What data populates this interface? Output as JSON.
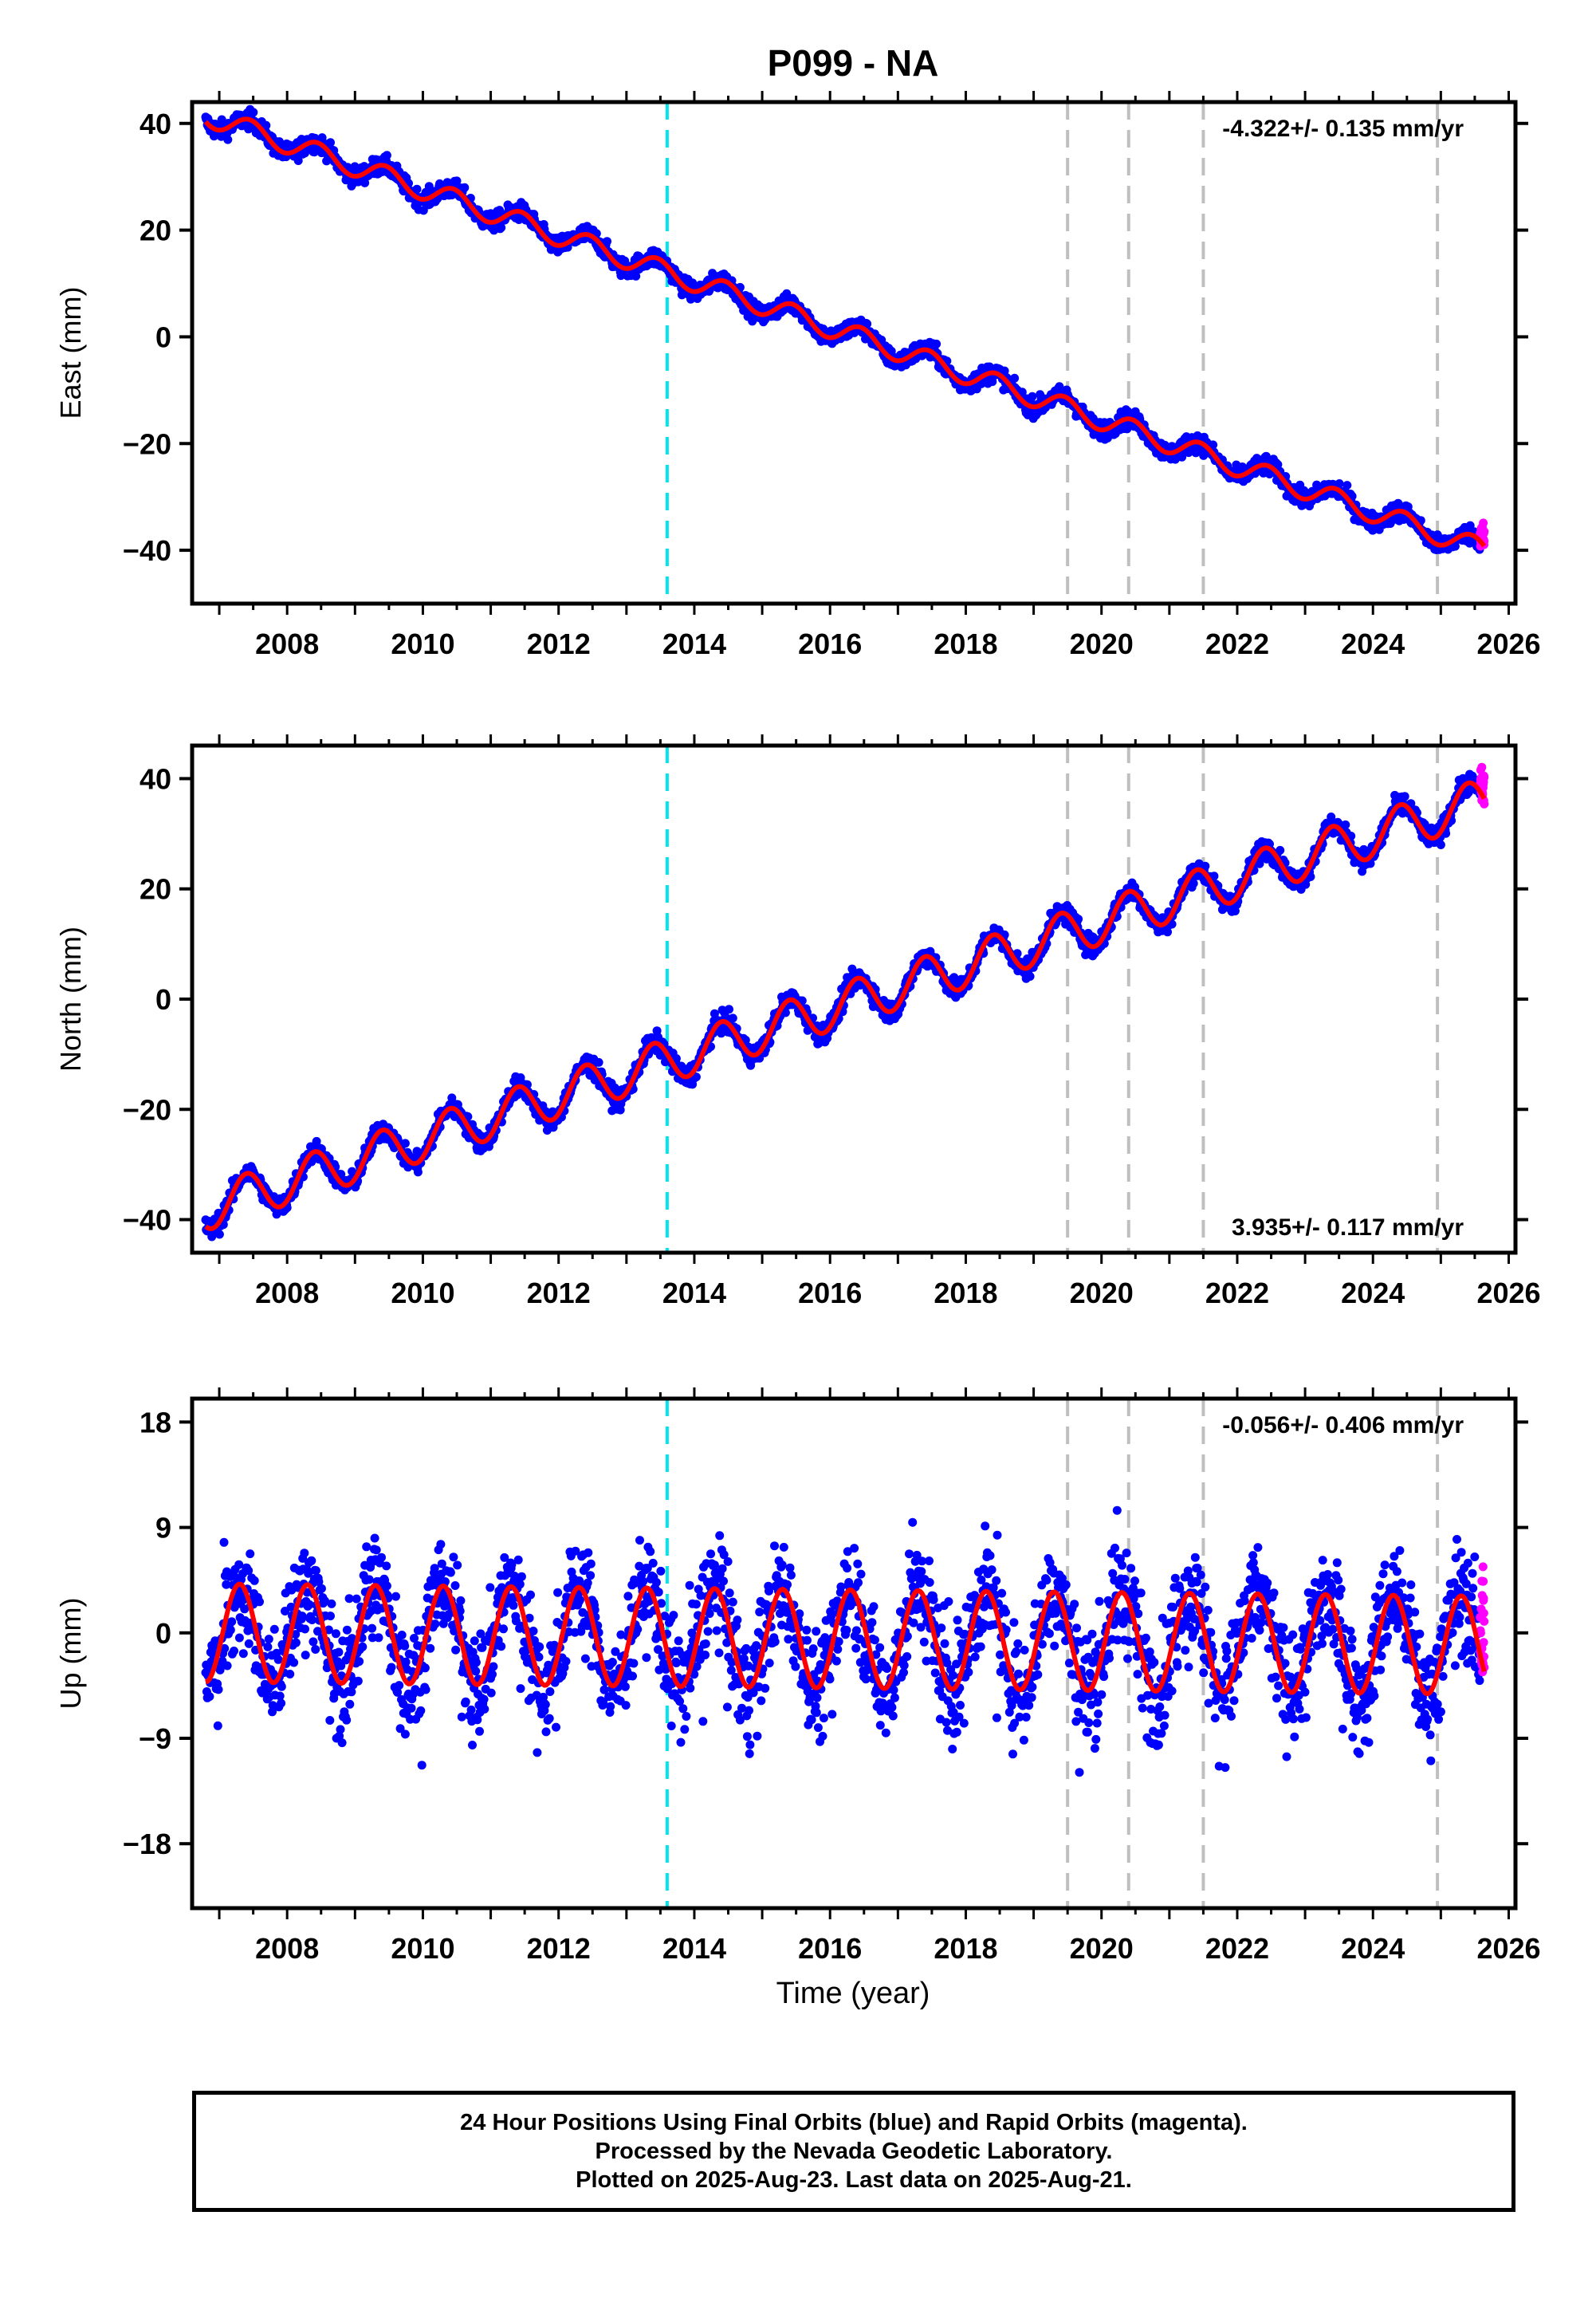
{
  "figure": {
    "title": "P099 - NA",
    "x_axis_title": "Time (year)",
    "caption": [
      "24 Hour Positions Using Final Orbits (blue) and Rapid Orbits (magenta).",
      "Processed by the Nevada Geodetic Laboratory.",
      "Plotted on 2025-Aug-23. Last data on 2025-Aug-21."
    ]
  },
  "colors": {
    "final_orbits": "#0000ff",
    "rapid_orbits": "#ff00ff",
    "model_fit": "#ff0000",
    "event_marker_cyan": "#00e5ee",
    "event_marker_gray": "#bfbfbf"
  },
  "chart_data": [
    {
      "type": "scatter",
      "component": "East",
      "ylabel": "East (mm)",
      "xlim": [
        2006.6,
        2026.1
      ],
      "ylim": [
        -50,
        44
      ],
      "xticks": [
        2008,
        2010,
        2012,
        2014,
        2016,
        2018,
        2020,
        2022,
        2024,
        2026
      ],
      "yticks": [
        40,
        20,
        0,
        -20,
        -40
      ],
      "rate_label": "-4.322+/- 0.135 mm/yr",
      "rate_label_position": "top-right",
      "trend": {
        "start_year": 2006.8,
        "start_value": 41.5,
        "slope_mm_per_yr": -4.322
      },
      "seasonal_amplitude": 2.0,
      "scatter_noise": 1.2,
      "final_orbits_span": [
        2006.8,
        2025.58
      ],
      "rapid_orbits_span": [
        2025.58,
        2025.64
      ],
      "vertical_markers": [
        {
          "year": 2013.6,
          "color": "cyan"
        },
        {
          "year": 2019.5,
          "color": "gray"
        },
        {
          "year": 2020.4,
          "color": "gray"
        },
        {
          "year": 2021.5,
          "color": "gray"
        },
        {
          "year": 2024.95,
          "color": "gray"
        }
      ]
    },
    {
      "type": "scatter",
      "component": "North",
      "ylabel": "North (mm)",
      "xlim": [
        2006.6,
        2026.1
      ],
      "ylim": [
        -46,
        46
      ],
      "xticks": [
        2008,
        2010,
        2012,
        2014,
        2016,
        2018,
        2020,
        2022,
        2024,
        2026
      ],
      "yticks": [
        40,
        20,
        0,
        -20,
        -40
      ],
      "rate_label": "3.935+/- 0.117 mm/yr",
      "rate_label_position": "bottom-right",
      "trend": {
        "start_year": 2006.8,
        "start_value": -38.0,
        "slope_mm_per_yr": 3.935
      },
      "seasonal_amplitude": 4.0,
      "scatter_noise": 1.3,
      "final_orbits_span": [
        2006.8,
        2025.58
      ],
      "rapid_orbits_span": [
        2025.58,
        2025.64
      ],
      "vertical_markers": [
        {
          "year": 2013.6,
          "color": "cyan"
        },
        {
          "year": 2019.5,
          "color": "gray"
        },
        {
          "year": 2020.4,
          "color": "gray"
        },
        {
          "year": 2021.5,
          "color": "gray"
        },
        {
          "year": 2024.95,
          "color": "gray"
        }
      ]
    },
    {
      "type": "scatter",
      "component": "Up",
      "ylabel": "Up (mm)",
      "xlim": [
        2006.6,
        2026.1
      ],
      "ylim": [
        -23.5,
        20
      ],
      "xticks": [
        2008,
        2010,
        2012,
        2014,
        2016,
        2018,
        2020,
        2022,
        2024,
        2026
      ],
      "yticks": [
        18,
        9,
        0,
        -9,
        -18
      ],
      "rate_label": "-0.056+/- 0.406 mm/yr",
      "rate_label_position": "top-right",
      "trend": {
        "start_year": 2006.8,
        "start_value": 0.0,
        "slope_mm_per_yr": -0.056
      },
      "seasonal_amplitude": 4.2,
      "scatter_noise": 3.2,
      "final_orbits_span": [
        2006.8,
        2025.58
      ],
      "rapid_orbits_span": [
        2025.58,
        2025.64
      ],
      "vertical_markers": [
        {
          "year": 2013.6,
          "color": "cyan"
        },
        {
          "year": 2019.5,
          "color": "gray"
        },
        {
          "year": 2020.4,
          "color": "gray"
        },
        {
          "year": 2021.5,
          "color": "gray"
        },
        {
          "year": 2024.95,
          "color": "gray"
        }
      ]
    }
  ]
}
